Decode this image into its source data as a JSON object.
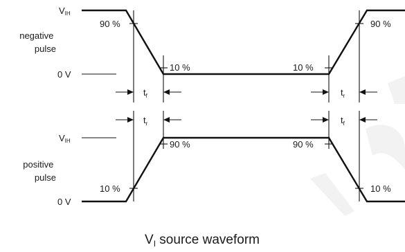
{
  "labels": {
    "vih": "V",
    "vih_sub": "IH",
    "zero_v": "0 V",
    "pct90": "90 %",
    "pct10": "10 %",
    "t": "t",
    "f_sub": "f",
    "r_sub": "r",
    "negative_line1": "negative",
    "negative_line2": "pulse",
    "positive_line1": "positive",
    "positive_line2": "pulse"
  },
  "caption": {
    "prefix": "V",
    "sub": "I",
    "rest": " source waveform"
  },
  "colors": {
    "line": "#111111",
    "text": "#1a1a1a",
    "watermark": "#f2f2f2"
  }
}
